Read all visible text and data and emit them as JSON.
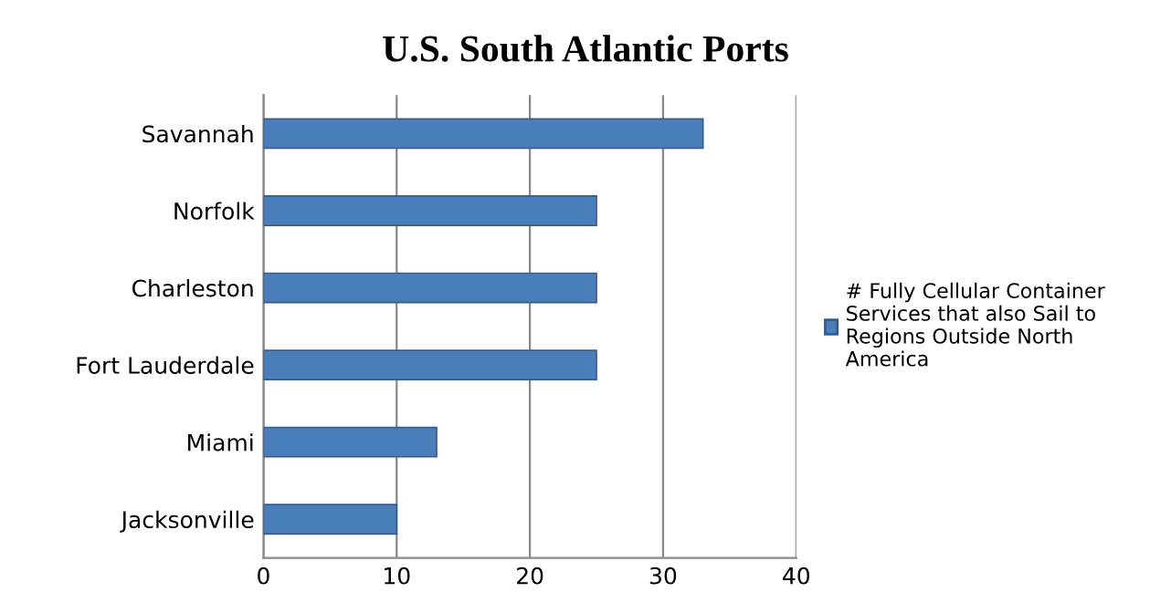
{
  "chart_data": {
    "type": "bar",
    "orientation": "horizontal",
    "title": "U.S. South Atlantic Ports",
    "categories": [
      "Savannah",
      "Norfolk",
      "Charleston",
      "Fort Lauderdale",
      "Miami",
      "Jacksonville"
    ],
    "series": [
      {
        "name": "# Fully Cellular Container Services that also Sail to Regions Outside North America",
        "color": "#4a7ebb",
        "values": [
          33,
          25,
          25,
          25,
          13,
          10
        ]
      }
    ],
    "xlim": [
      0,
      40
    ],
    "xticks": [
      0,
      10,
      20,
      30,
      40
    ],
    "grid": "x",
    "legend": "right"
  }
}
